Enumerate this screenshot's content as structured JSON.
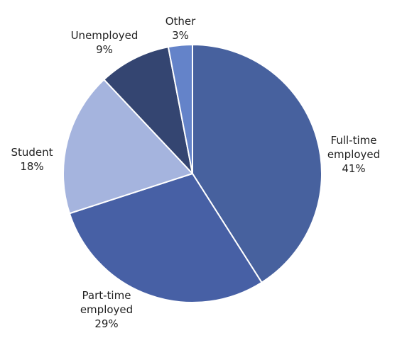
{
  "chart_data": {
    "type": "pie",
    "categories": [
      "Full-time employed",
      "Part-time employed",
      "Student",
      "Unemployed",
      "Other"
    ],
    "values": [
      41,
      29,
      18,
      9,
      3
    ],
    "value_labels": [
      "41%",
      "29%",
      "18%",
      "9%",
      "3%"
    ],
    "colors": [
      "#47619e",
      "#4760a5",
      "#a5b4de",
      "#344571",
      "#6483c9"
    ]
  }
}
